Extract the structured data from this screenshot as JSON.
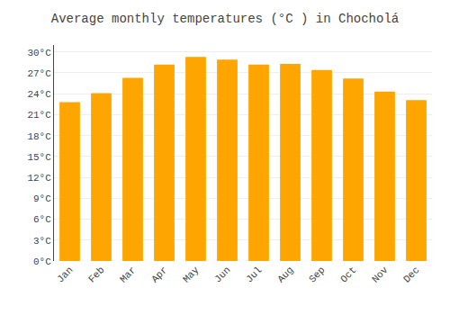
{
  "chart_data": {
    "type": "bar",
    "title": "Average monthly temperatures (°C ) in Chocholá",
    "categories": [
      "Jan",
      "Feb",
      "Mar",
      "Apr",
      "May",
      "Jun",
      "Jul",
      "Aug",
      "Sep",
      "Oct",
      "Nov",
      "Dec"
    ],
    "values": [
      22.8,
      24.1,
      26.3,
      28.2,
      29.3,
      28.9,
      28.2,
      28.3,
      27.4,
      26.2,
      24.3,
      23.1
    ],
    "color": "#FFA500",
    "ylim": [
      0,
      31
    ],
    "yticks": [
      {
        "value": 0,
        "label": "0°C"
      },
      {
        "value": 3,
        "label": "3°C"
      },
      {
        "value": 6,
        "label": "6°C"
      },
      {
        "value": 9,
        "label": "9°C"
      },
      {
        "value": 12,
        "label": "12°C"
      },
      {
        "value": 15,
        "label": "15°C"
      },
      {
        "value": 18,
        "label": "18°C"
      },
      {
        "value": 21,
        "label": "21°C"
      },
      {
        "value": 24,
        "label": "24°C"
      },
      {
        "value": 27,
        "label": "27°C"
      },
      {
        "value": 30,
        "label": "30°C"
      }
    ],
    "grid": true
  }
}
